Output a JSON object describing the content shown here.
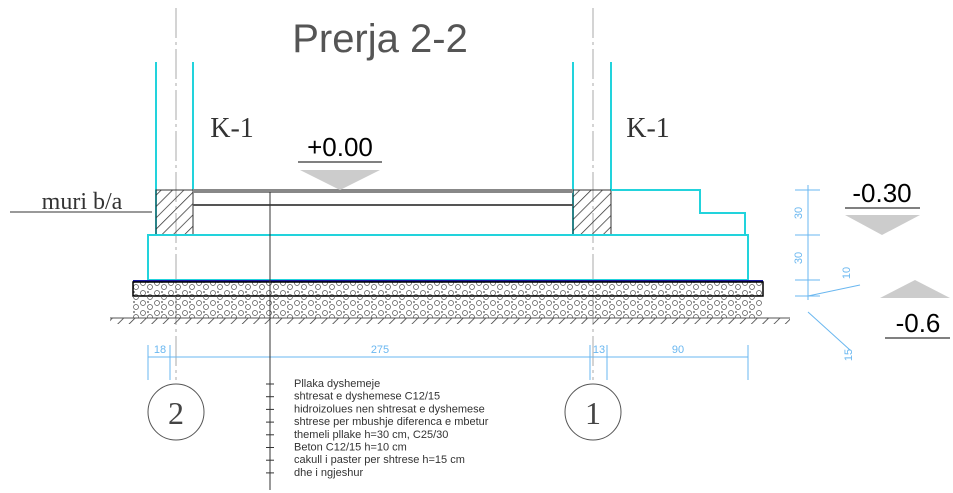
{
  "title": "Prerja 2-2",
  "columns": [
    {
      "label": "K-1"
    },
    {
      "label": "K-1"
    }
  ],
  "levels": [
    {
      "label": "+0.00"
    },
    {
      "label": "-0.30"
    },
    {
      "label": "-0.6"
    }
  ],
  "wall_label": "muri b/a",
  "dimensions": {
    "horizontal": [
      18,
      275,
      13,
      90
    ],
    "vertical": [
      30,
      30,
      10,
      15
    ]
  },
  "axes": [
    "2",
    "1"
  ],
  "layers": [
    "Pllaka dyshemeje",
    "shtresat e dyshemese C12/15",
    "hidroizolues  nen shtresat e dyshemese",
    "shtrese per mbushje diferenca e mbetur",
    "themeli pllake h=30 cm, C25/30",
    "Beton C12/15 h=10 cm",
    "cakull i paster per shtrese h=15 cm",
    "dhe i ngjeshur"
  ]
}
